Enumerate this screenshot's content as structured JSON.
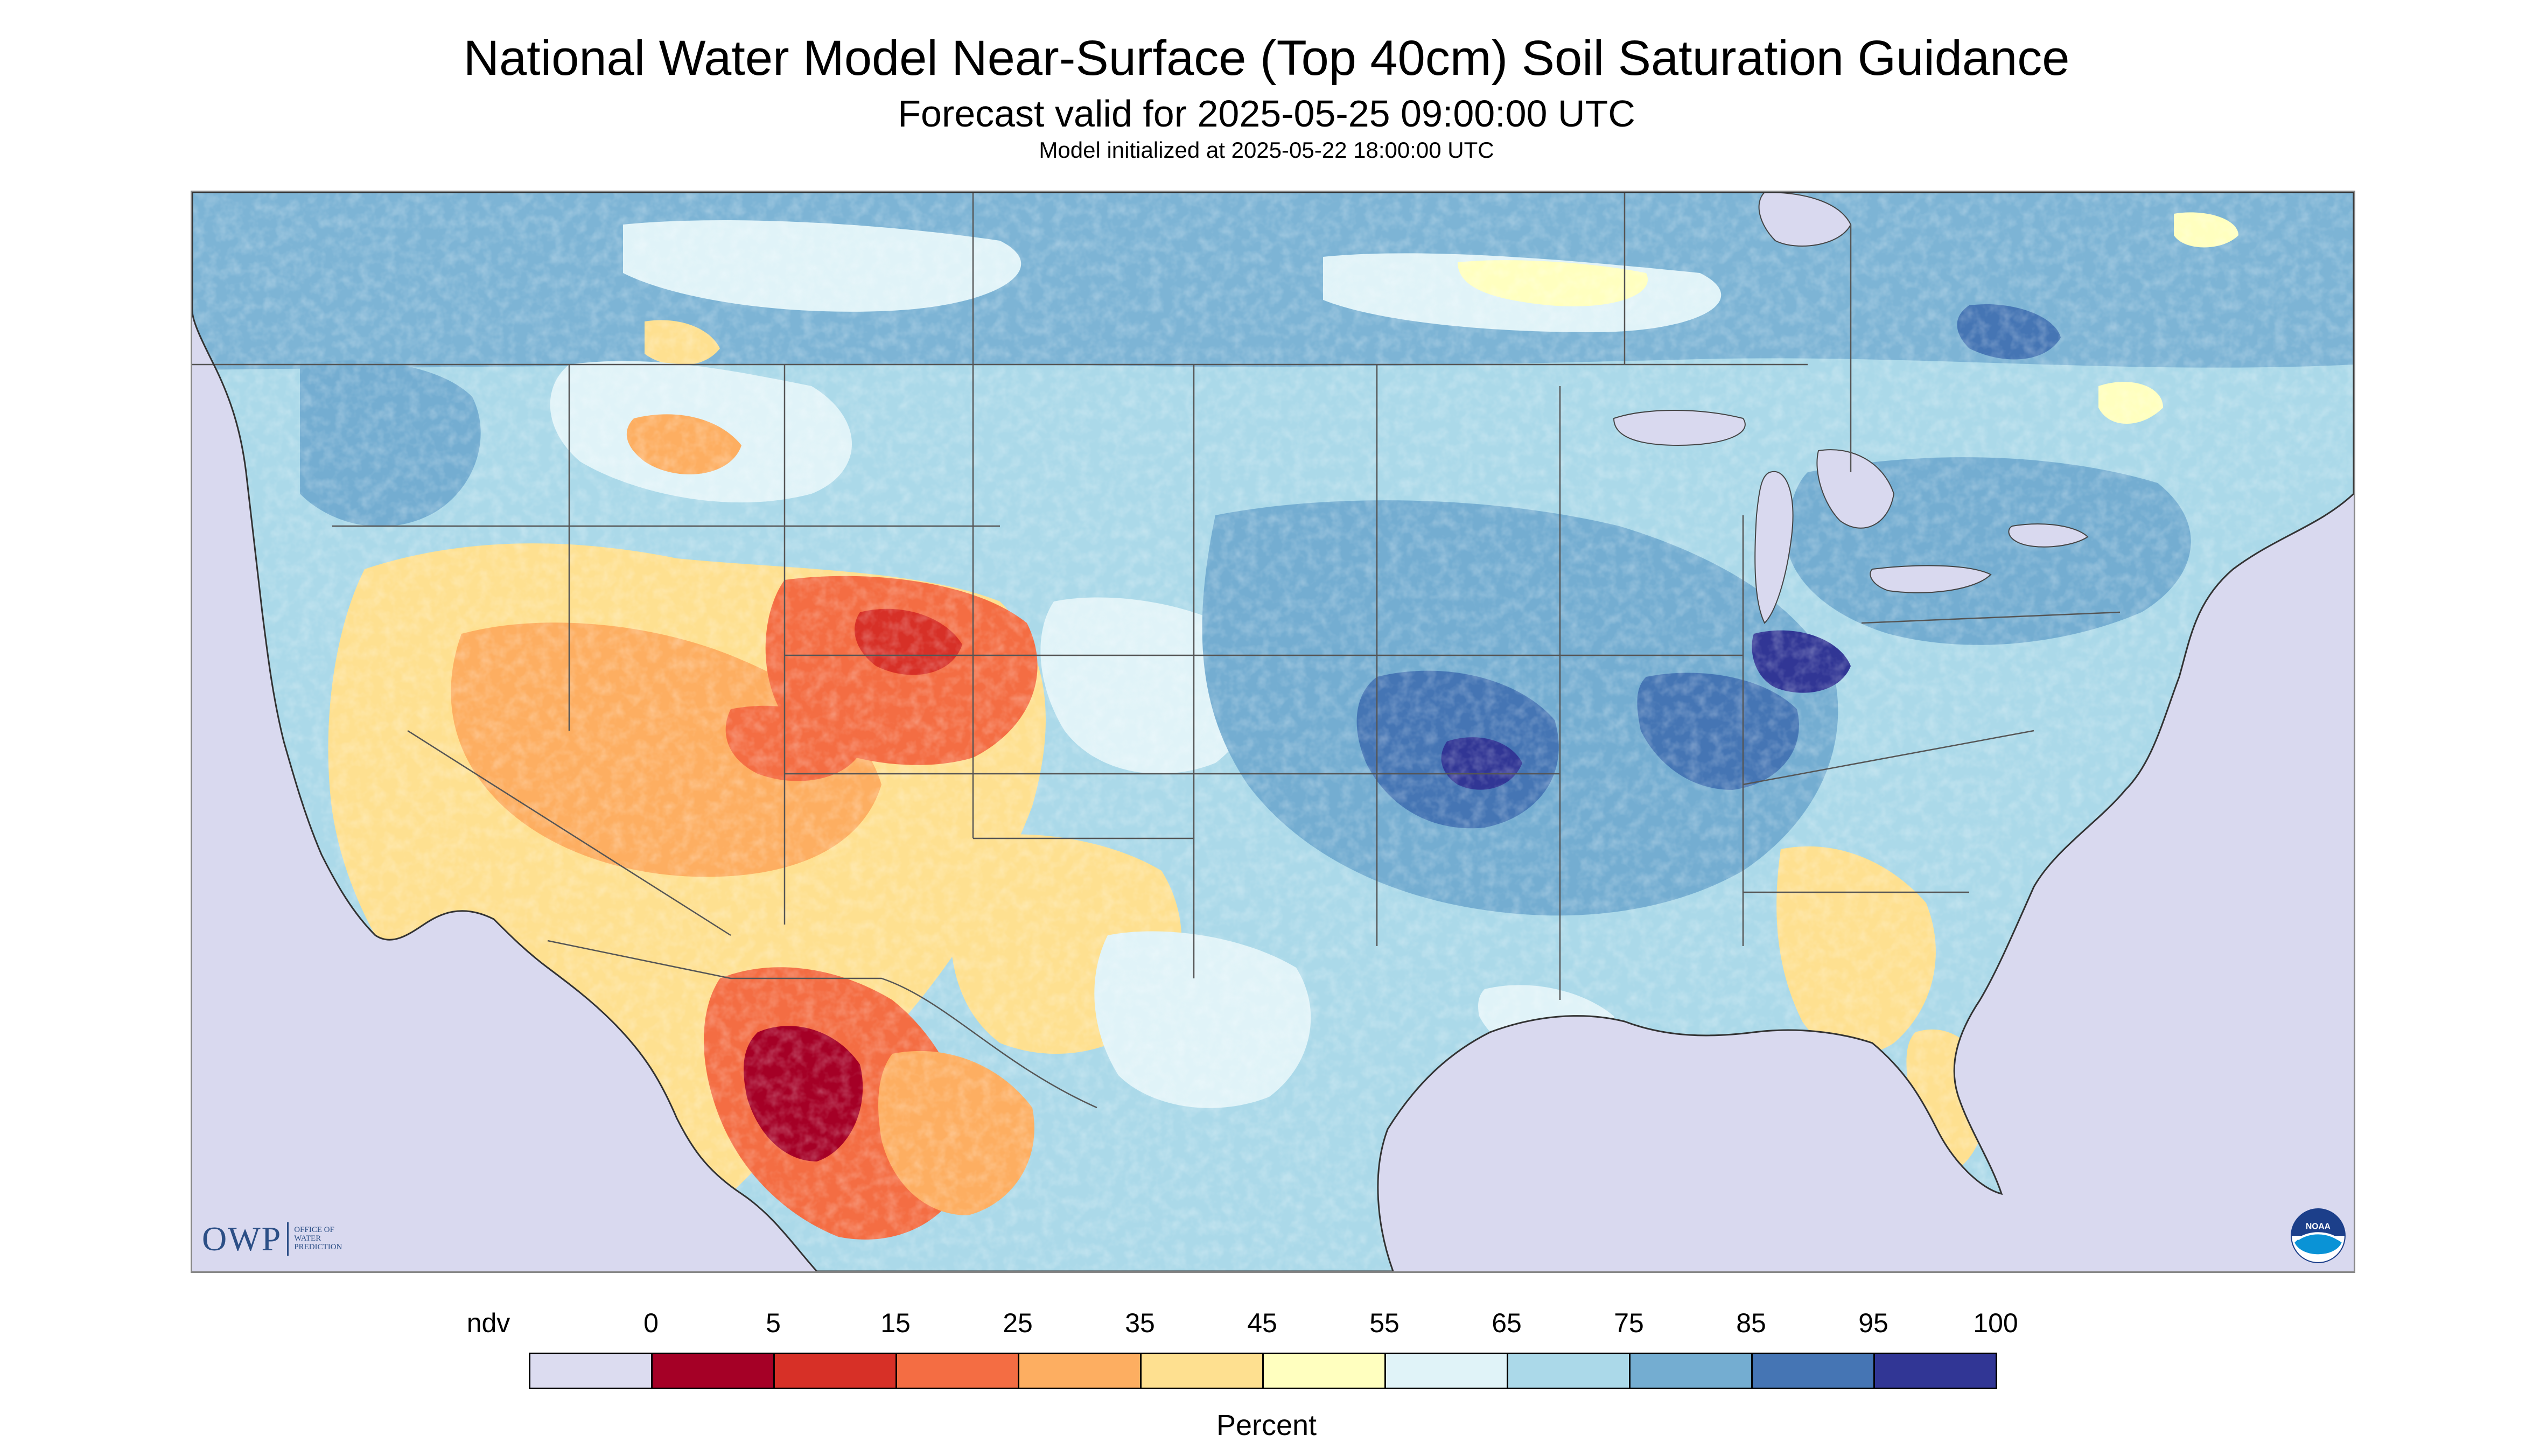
{
  "header": {
    "title": "National Water Model Near-Surface (Top 40cm) Soil Saturation Guidance",
    "subtitle": "Forecast valid for 2025-05-25 09:00:00 UTC",
    "init_line": "Model initialized at 2025-05-22 18:00:00 UTC"
  },
  "logos": {
    "owp_letters": "OWP",
    "owp_line1": "Office of",
    "owp_line2": "Water",
    "owp_line3": "Prediction",
    "noaa_text": "NOAA"
  },
  "legend": {
    "unit_label": "Percent",
    "labels": [
      "ndv",
      "0",
      "5",
      "15",
      "25",
      "35",
      "45",
      "55",
      "65",
      "75",
      "85",
      "95",
      "100"
    ],
    "colors": [
      "#dcdcf0",
      "#a50026",
      "#d73027",
      "#f46d43",
      "#fdae61",
      "#fee090",
      "#ffffbf",
      "#e0f3f8",
      "#abd9e9",
      "#74add1",
      "#4575b4",
      "#313695"
    ],
    "bins": [
      {
        "label": "ndv",
        "color": "#dcdcf0"
      },
      {
        "from": 0,
        "to": 5,
        "color": "#a50026"
      },
      {
        "from": 5,
        "to": 15,
        "color": "#d73027"
      },
      {
        "from": 15,
        "to": 25,
        "color": "#f46d43"
      },
      {
        "from": 25,
        "to": 35,
        "color": "#fdae61"
      },
      {
        "from": 35,
        "to": 45,
        "color": "#fee090"
      },
      {
        "from": 45,
        "to": 55,
        "color": "#ffffbf"
      },
      {
        "from": 55,
        "to": 65,
        "color": "#e0f3f8"
      },
      {
        "from": 65,
        "to": 75,
        "color": "#abd9e9"
      },
      {
        "from": 75,
        "to": 85,
        "color": "#74add1"
      },
      {
        "from": 85,
        "to": 95,
        "color": "#4575b4"
      },
      {
        "from": 95,
        "to": 100,
        "color": "#313695"
      }
    ]
  },
  "map_colors": {
    "nodata": "#d9d9ef",
    "water": "#d9d9ef",
    "very_dry": "#a50026",
    "dry": "#d73027",
    "moderate_dry": "#f46d43",
    "semi_dry": "#fdae61",
    "semi": "#fee090",
    "neutral": "#ffffbf",
    "light_wet": "#e0f3f8",
    "wet": "#abd9e9",
    "wetter": "#74add1",
    "very_wet": "#4575b4",
    "saturated": "#313695",
    "boundary": "#444444"
  }
}
